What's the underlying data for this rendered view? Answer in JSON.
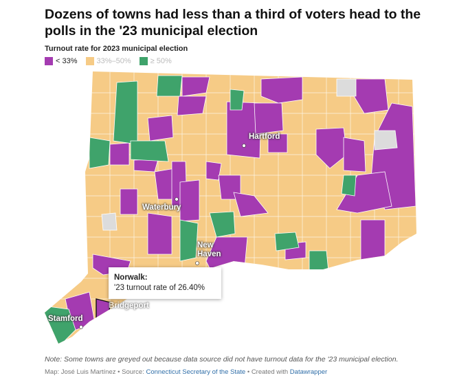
{
  "header": {
    "title": "Dozens of towns had less than a third of voters head to the polls in the '23 municipal election",
    "legend_title": "Turnout rate for 2023 municipal election"
  },
  "legend": [
    {
      "label": "< 33%",
      "color": "#a43bb1"
    },
    {
      "label": "33%–50%",
      "color": "#f6cb86"
    },
    {
      "label": "≥ 50%",
      "color": "#3fa36b"
    }
  ],
  "map": {
    "places": {
      "hartford": "Hartford",
      "waterbury": "Waterbury",
      "new_haven": "New Haven",
      "stamford": "Stamford",
      "bridgeport": "Bridgeport"
    },
    "tooltip": {
      "title": "Norwalk:",
      "text": "'23 turnout rate of 26.40%"
    }
  },
  "footer": {
    "note": "Note: Some towns are greyed out because data source did not have turnout data for the '23 municipal election.",
    "credit_map": "Map: José Luis Martínez",
    "credit_source_label": "Source:",
    "credit_source": "Connecticut Secretary of the State",
    "credit_created_label": "Created with",
    "credit_created": "Datawrapper"
  }
}
